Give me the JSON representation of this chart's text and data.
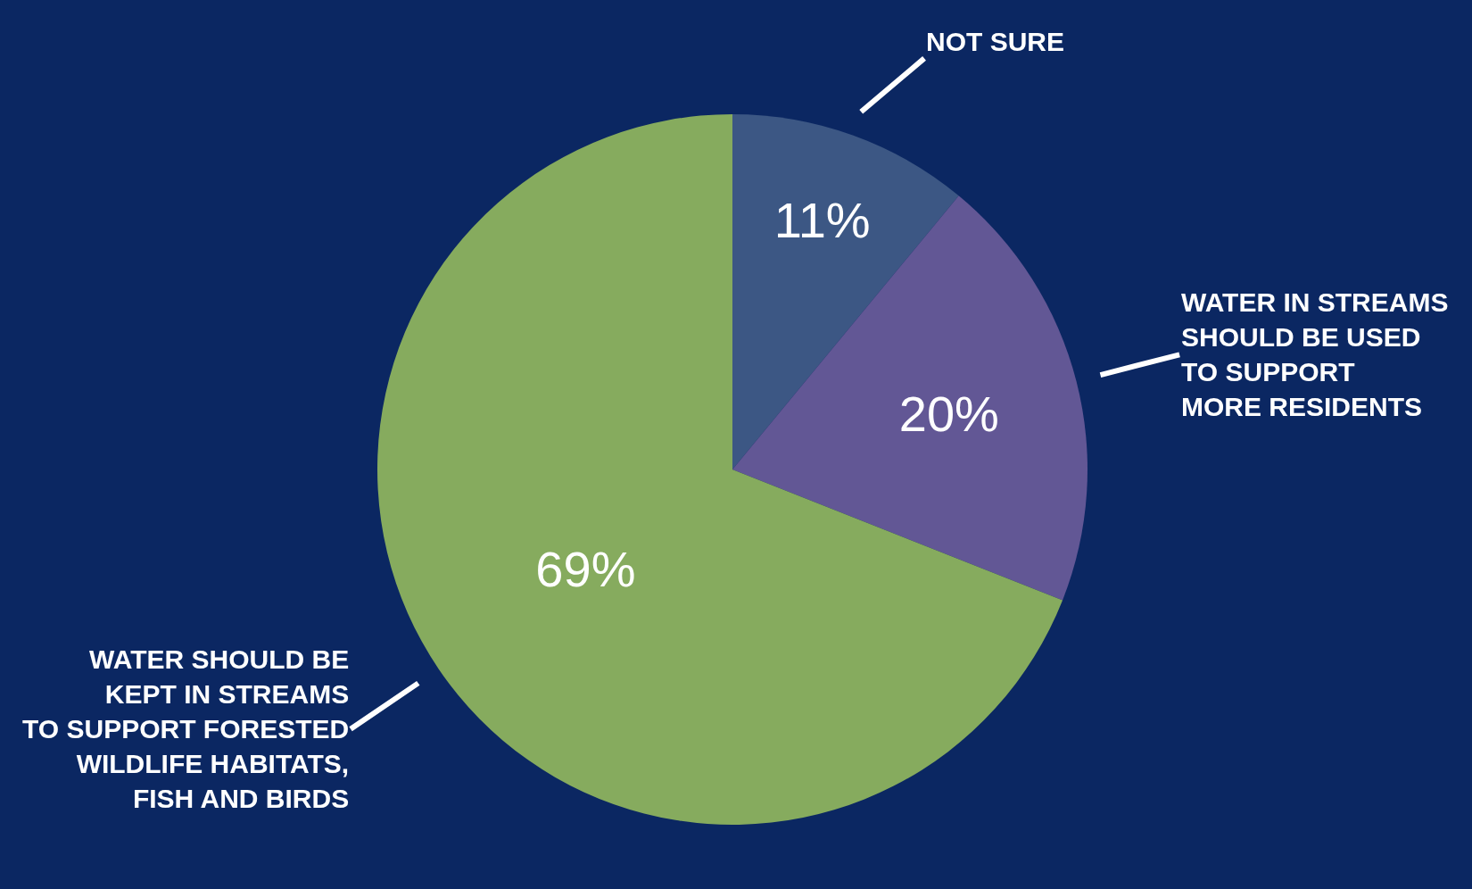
{
  "chart_data": {
    "type": "pie",
    "categories": [
      "NOT SURE",
      "WATER IN STREAMS\nSHOULD BE USED\nTO SUPPORT\nMORE RESIDENTS",
      "WATER SHOULD BE\nKEPT IN STREAMS\nTO SUPPORT FORESTED\nWILDLIFE HABITATS,\nFISH AND BIRDS"
    ],
    "values": [
      11,
      20,
      69
    ],
    "value_labels": [
      "11%",
      "20%",
      "69%"
    ],
    "colors": [
      "#3c5784",
      "#625795",
      "#86ab5e"
    ],
    "legend": false
  }
}
